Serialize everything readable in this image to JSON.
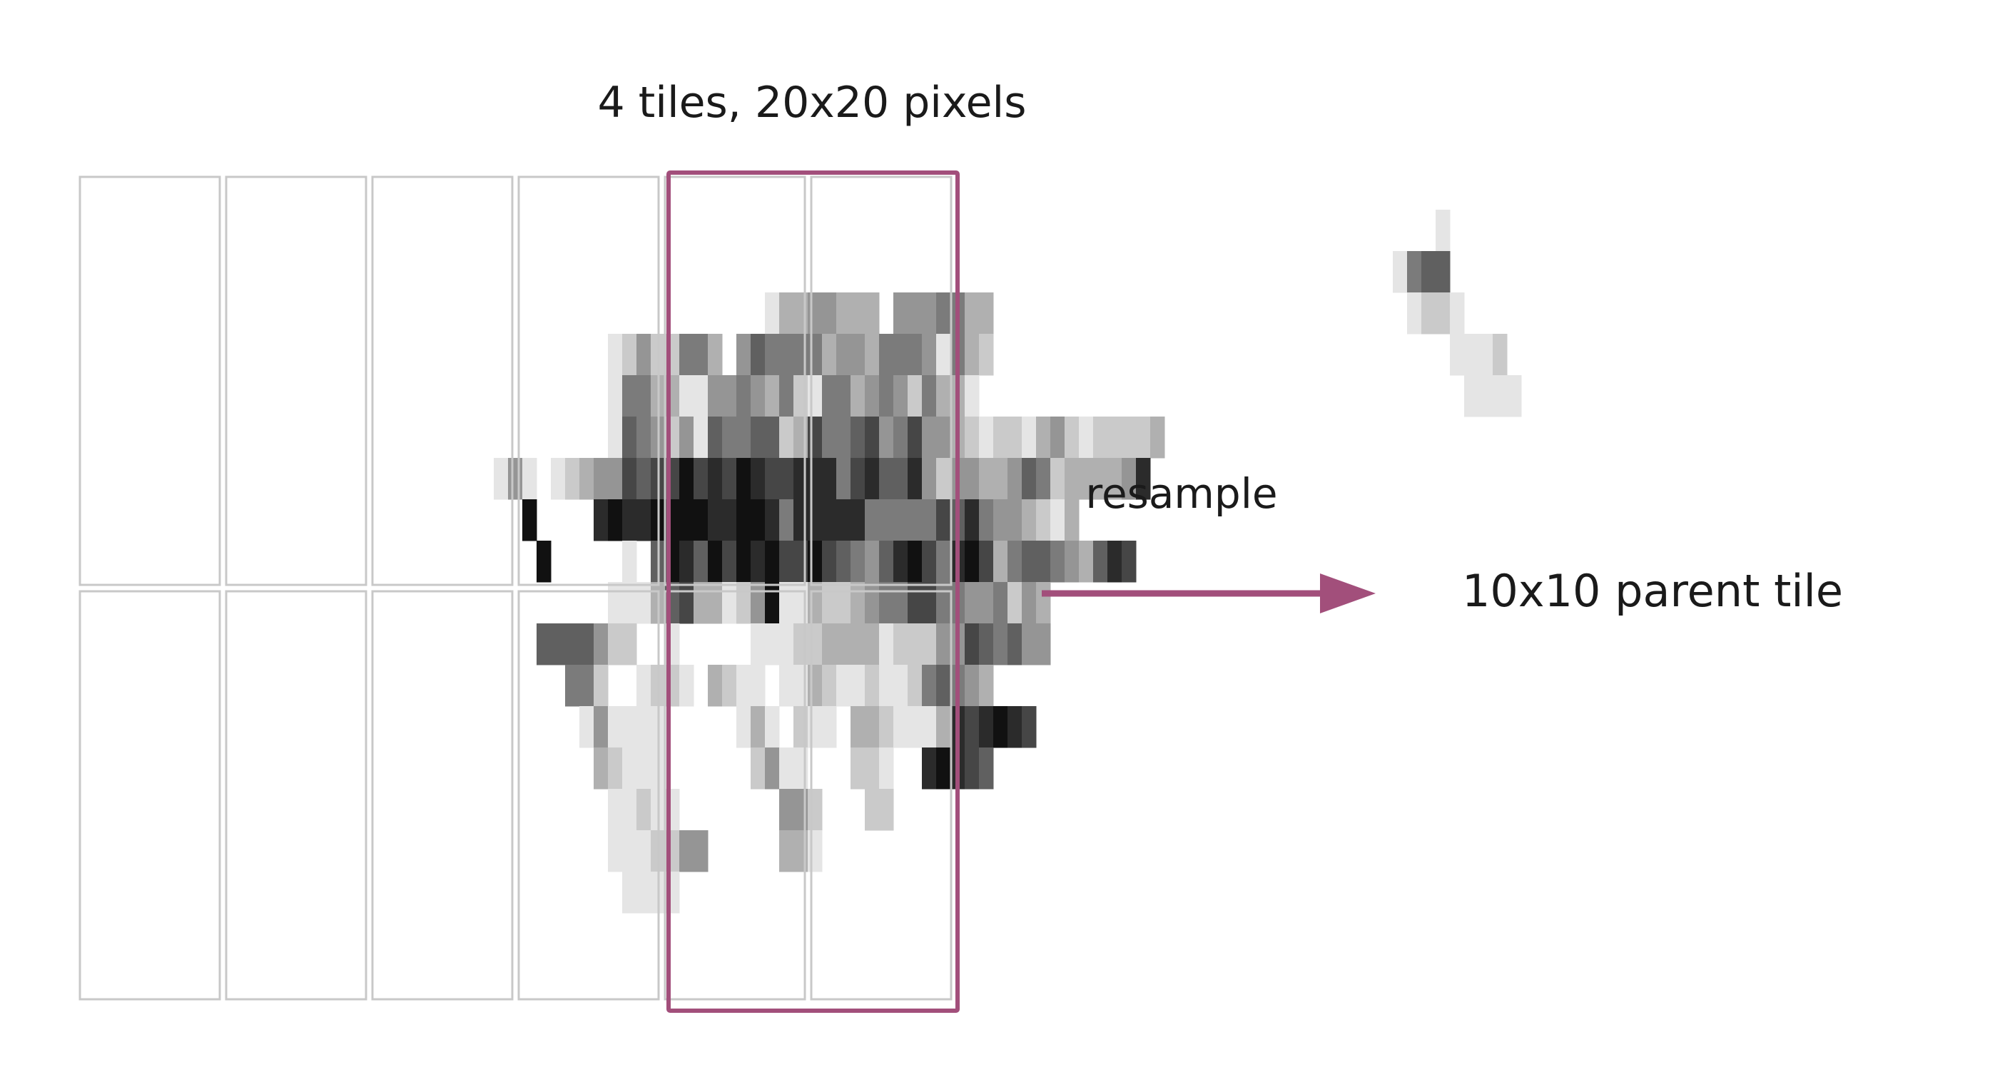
{
  "labels": {
    "top": "4 tiles, 20x20 pixels",
    "arrow": "resample",
    "result": "10x10 parent tile"
  },
  "colors": {
    "highlight": "#a24f7b",
    "tile_border": "#c8c8c8",
    "text": "#1a1a1a"
  },
  "grid": {
    "columns": 6,
    "rows": 2,
    "highlighted_columns": [
      4,
      5
    ]
  },
  "pixel_matrix": [
    "00000000000000000000000000000000000000000000000000000000000000000000000000000000000000000000000000000000000000000000000000000000",
    "000000000000000000000000000000000000000000000000000000000000000000000000000000000000000000000001000000000000000000000000000000000",
    "000000000000000000000000000000000000000000000000000000000000000000000000000000000000000000001566000000000000000000000000000000000",
    "0000000000000000000000000000000000000000000000001334433304445533000000000000000000000000000001221000000000000000000000000000000000",
    "0000000000000000000000000000000000000124225530465555344355541532000000000000000000000000000000001112000000000000000000000000000000",
    "000000000000000000000000000000000000015533114454352155345425331000000000000000000000000000000000011110000000000000000000000000000",
    "000000000000000000000000000000000000016542416556623755674574432122134212222300000000000000000000000000000000000000000000000000000",
    "0000000000000000000000000000014101234476779787987788857866842443346523333480000000000000000000000000000000000000000000000000000",
    "0000000000000000000000000000000900008988999988998588888555557685443213000000000000000000000000000000000000000000000000000000000",
    "000000000000000000000000000000009000001069869798977976546897589735665436870000000000000000000000000000000000000000000000000000",
    "0000000000000000000000000000000000000111367331249113223455775544524300000000000000000000000000000000000000000000000000000000",
    "000000000000000000000000000000006666422001000001112233331222447656440000000000000000000000000000000000000000000000000000000000",
    "000000000000000000000000000000000055200122103211011321121125654300000000000000000000000000000000000000000000000000000000000000",
    "000000000000000000000000000000000001411110000013102110332111387898700000000000000000000000000000000000000000000000000000000000",
    "000000000000000000000000000000000000321110000002411000221008987600000000000000000000000000000000000000000000000000000000000000",
    "000000000000000000000000000000000000011211000000044200022000000000000000000000000000000000000000000000000000000000000000000000",
    "000000000000000000000000000000000000011122440000033100000000000000000000000000000000000000000000000000000000000000000000000000",
    "000000000000000000000000000000000000001111000000000000000000000000000000000000000000000000000000000000000000000000000000000000"
  ]
}
